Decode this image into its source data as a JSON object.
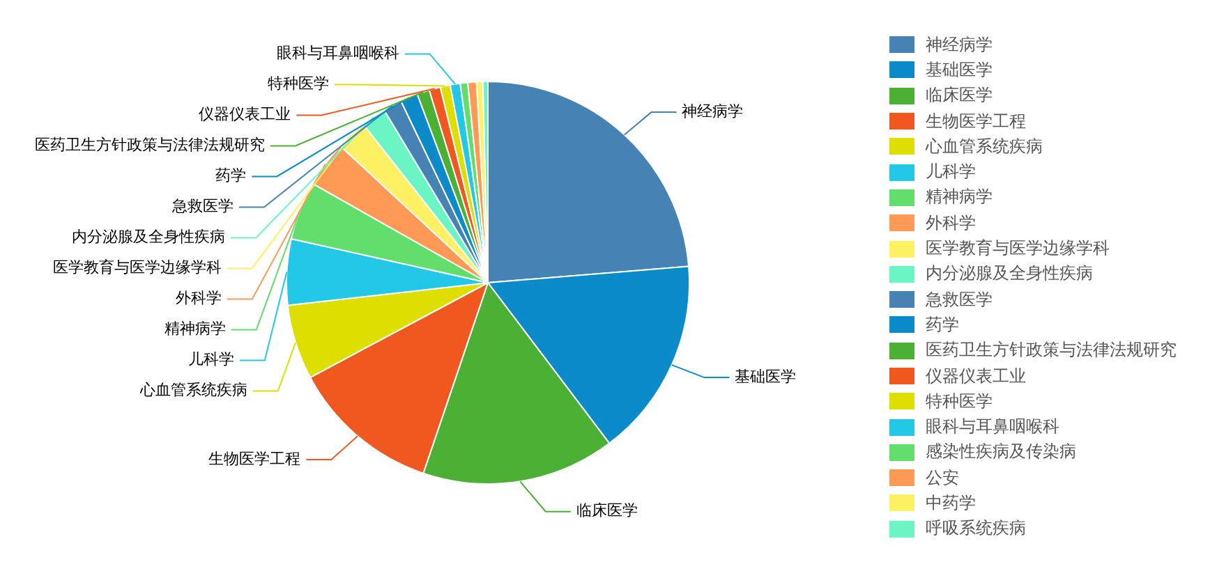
{
  "chart_data": {
    "type": "pie",
    "legend": "right",
    "categories": [
      "神经病学",
      "基础医学",
      "临床医学",
      "生物医学工程",
      "心血管系统疾病",
      "儿科学",
      "精神病学",
      "外科学",
      "医学教育与医学边缘学科",
      "内分泌腺及全身性疾病",
      "急救医学",
      "药学",
      "医药卫生方针政策与法律法规研究",
      "仪器仪表工业",
      "特种医学",
      "眼科与耳鼻咽喉科",
      "感染性疾病及传染病",
      "公安",
      "中药学",
      "呼吸系统疾病"
    ],
    "values": [
      23.7,
      16,
      15.5,
      12,
      6,
      5.3,
      4.7,
      3.7,
      2.5,
      2,
      1.5,
      1.4,
      1,
      0.9,
      0.8,
      0.8,
      0.6,
      0.7,
      0.5,
      0.4
    ],
    "colors": [
      "#4682b4",
      "#0b8bc9",
      "#4cb034",
      "#f0581f",
      "#dede00",
      "#22c8e5",
      "#61de6c",
      "#ff9955",
      "#fff064",
      "#6bf5c5",
      "#4682b4",
      "#0b8bc9",
      "#4cb034",
      "#f0581f",
      "#dede00",
      "#22c8e5",
      "#61de6c",
      "#ff9955",
      "#fff064",
      "#6bf5c5"
    ]
  }
}
